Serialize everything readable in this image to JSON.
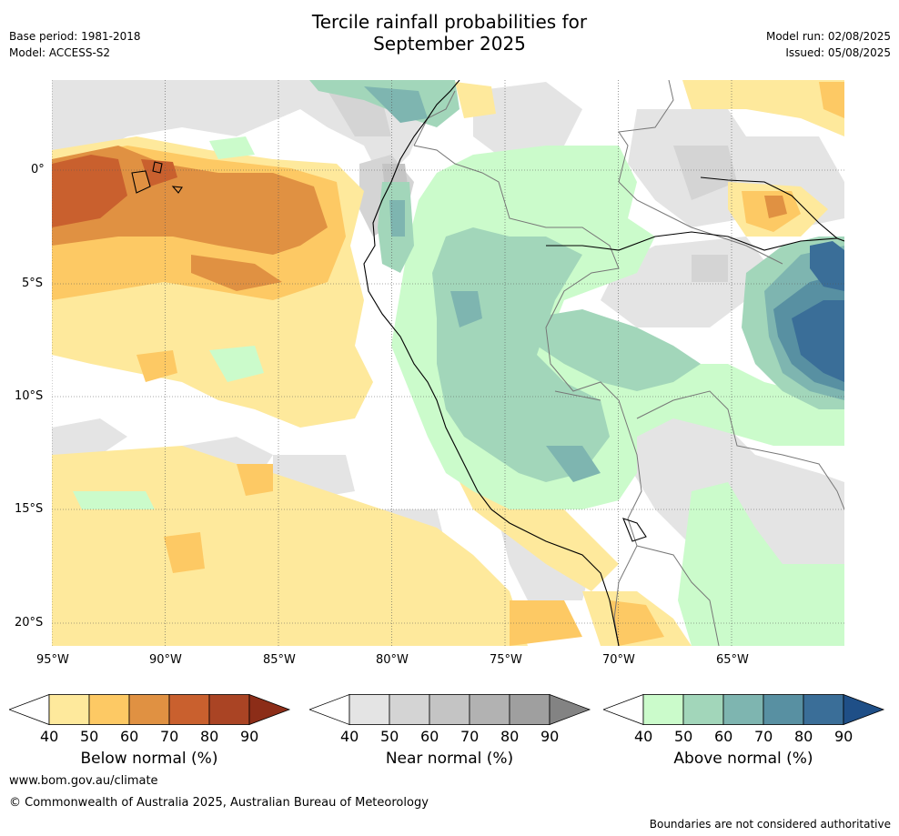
{
  "title_line1": "Tercile rainfall probabilities for",
  "title_line2": "September 2025",
  "meta": {
    "base_period": "Base period: 1981-2018",
    "model": "Model: ACCESS-S2",
    "model_run": "Model run: 02/08/2025",
    "issued": "Issued: 05/08/2025"
  },
  "map": {
    "lon_labels": [
      "95°W",
      "90°W",
      "85°W",
      "80°W",
      "75°W",
      "70°W",
      "65°W"
    ],
    "lat_labels": [
      "0°",
      "5°S",
      "10°S",
      "15°S",
      "20°S"
    ]
  },
  "colorbars": [
    {
      "label": "Below normal (%)",
      "ticks": [
        "40",
        "50",
        "60",
        "70",
        "80",
        "90"
      ],
      "colors": [
        "#ffffff",
        "#fee99c",
        "#fdc964",
        "#e09142",
        "#c9602e",
        "#aa4424",
        "#8c2d18"
      ]
    },
    {
      "label": "Near normal (%)",
      "ticks": [
        "40",
        "50",
        "60",
        "70",
        "80",
        "90"
      ],
      "colors": [
        "#ffffff",
        "#e4e4e4",
        "#d4d4d4",
        "#c4c4c4",
        "#b2b2b2",
        "#9f9f9f",
        "#838383"
      ]
    },
    {
      "label": "Above normal (%)",
      "ticks": [
        "40",
        "50",
        "60",
        "70",
        "80",
        "90"
      ],
      "colors": [
        "#ffffff",
        "#cbfbcb",
        "#a2d6ba",
        "#7eb5b0",
        "#5890a2",
        "#3a6e98",
        "#1f4f87"
      ]
    }
  ],
  "footer": {
    "url": "www.bom.gov.au/climate",
    "copyright": "© Commonwealth of Australia 2025, Australian Bureau of Meteorology",
    "note": "Boundaries are not considered authoritative"
  }
}
